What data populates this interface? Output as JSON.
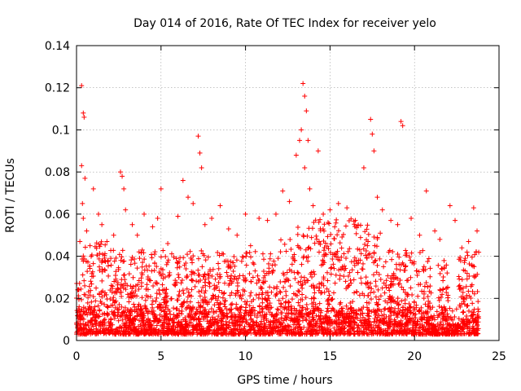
{
  "chart_data": {
    "type": "scatter",
    "title": "Day 014 of 2016, Rate Of TEC Index for receiver yelo",
    "xlabel": "GPS time / hours",
    "ylabel": "ROTI / TECUs",
    "xlim": [
      0,
      25
    ],
    "ylim": [
      0,
      0.14
    ],
    "xticks": [
      0,
      5,
      10,
      15,
      20,
      25
    ],
    "xtick_labels": [
      "0",
      "5",
      "10",
      "15",
      "20",
      "25"
    ],
    "yticks": [
      0,
      0.02,
      0.04,
      0.06,
      0.08,
      0.1,
      0.12,
      0.14
    ],
    "ytick_labels": [
      "0",
      "0.02",
      "0.04",
      "0.06",
      "0.08",
      "0.1",
      "0.12",
      "0.14"
    ],
    "grid": true,
    "marker": "+",
    "marker_color": "#ff0000",
    "axis_color": "#000000",
    "grid_color": "#a0a0a0",
    "series": [
      {
        "name": "ROTI",
        "x": [
          0.3,
          0.4,
          0.45,
          0.3,
          0.5,
          0.35,
          0.4,
          0.6,
          0.2,
          0.8,
          1.0,
          1.3,
          1.5,
          1.8,
          2.2,
          2.6,
          2.7,
          2.8,
          2.9,
          3.3,
          3.6,
          4.0,
          4.5,
          4.8,
          5.0,
          5.4,
          6.0,
          6.3,
          6.6,
          6.9,
          7.2,
          7.3,
          7.4,
          7.6,
          8.0,
          8.5,
          9.0,
          9.5,
          10.0,
          10.3,
          10.8,
          11.3,
          11.8,
          12.2,
          12.6,
          13.0,
          13.2,
          13.4,
          13.5,
          13.6,
          13.3,
          13.7,
          13.5,
          13.8,
          14.0,
          14.3,
          14.6,
          15.0,
          15.5,
          16.0,
          16.5,
          17.0,
          17.4,
          17.5,
          17.6,
          17.8,
          18.1,
          18.6,
          19.0,
          19.2,
          19.3,
          19.8,
          20.3,
          20.7,
          21.2,
          21.5,
          22.1,
          22.4,
          22.8,
          23.2,
          23.5,
          23.7
        ],
        "y": [
          0.121,
          0.108,
          0.106,
          0.083,
          0.077,
          0.065,
          0.058,
          0.052,
          0.047,
          0.045,
          0.072,
          0.06,
          0.055,
          0.047,
          0.05,
          0.08,
          0.078,
          0.072,
          0.062,
          0.055,
          0.05,
          0.06,
          0.054,
          0.058,
          0.072,
          0.046,
          0.059,
          0.076,
          0.068,
          0.065,
          0.097,
          0.089,
          0.082,
          0.055,
          0.058,
          0.064,
          0.053,
          0.05,
          0.06,
          0.045,
          0.058,
          0.057,
          0.06,
          0.071,
          0.066,
          0.088,
          0.095,
          0.122,
          0.116,
          0.109,
          0.1,
          0.095,
          0.082,
          0.072,
          0.064,
          0.09,
          0.06,
          0.062,
          0.065,
          0.063,
          0.057,
          0.082,
          0.105,
          0.098,
          0.09,
          0.068,
          0.062,
          0.057,
          0.055,
          0.104,
          0.102,
          0.058,
          0.05,
          0.071,
          0.052,
          0.048,
          0.064,
          0.057,
          0.044,
          0.047,
          0.063,
          0.052
        ]
      }
    ],
    "density_note": "many additional dense points between 0.003 and 0.05 throughout 0-24 hours"
  }
}
